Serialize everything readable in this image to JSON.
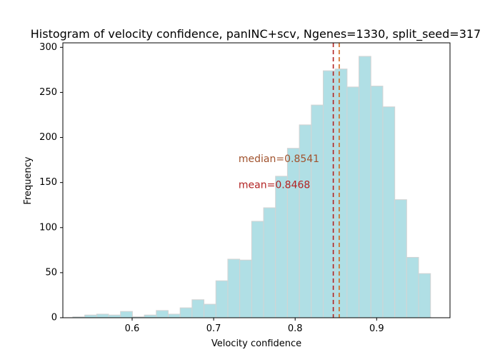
{
  "chart_data": {
    "type": "histogram",
    "title": "Histogram of velocity confidence, panINC+scv, Ngenes=1330, split_seed=317",
    "xlabel": "Velocity confidence",
    "ylabel": "Frequency",
    "xlim": [
      0.515,
      0.99
    ],
    "ylim": [
      0,
      305
    ],
    "x_ticks": [
      0.6,
      0.7,
      0.8,
      0.9
    ],
    "y_ticks": [
      0,
      50,
      100,
      150,
      200,
      250,
      300
    ],
    "bin_start": 0.5272,
    "bin_width": 0.01463,
    "values": [
      1,
      3,
      4,
      3,
      7,
      1,
      3,
      8,
      4,
      11,
      20,
      15,
      41,
      65,
      64,
      107,
      122,
      157,
      188,
      214,
      236,
      274,
      276,
      256,
      290,
      257,
      234,
      131,
      67,
      49
    ],
    "bar_color": "#b0dfe5",
    "bar_edge_color": "#d3d3d3",
    "lines": [
      {
        "label": "median",
        "x": 0.8541,
        "color": "#d2691e"
      },
      {
        "label": "mean",
        "x": 0.8468,
        "color": "#b22222"
      }
    ],
    "annotations": [
      {
        "text": "median=0.8541",
        "x": 0.7305,
        "y": 176,
        "color": "#a0522d"
      },
      {
        "text": "mean=0.8468",
        "x": 0.7305,
        "y": 147,
        "color": "#b22222"
      }
    ],
    "grid": false,
    "legend": "none"
  }
}
